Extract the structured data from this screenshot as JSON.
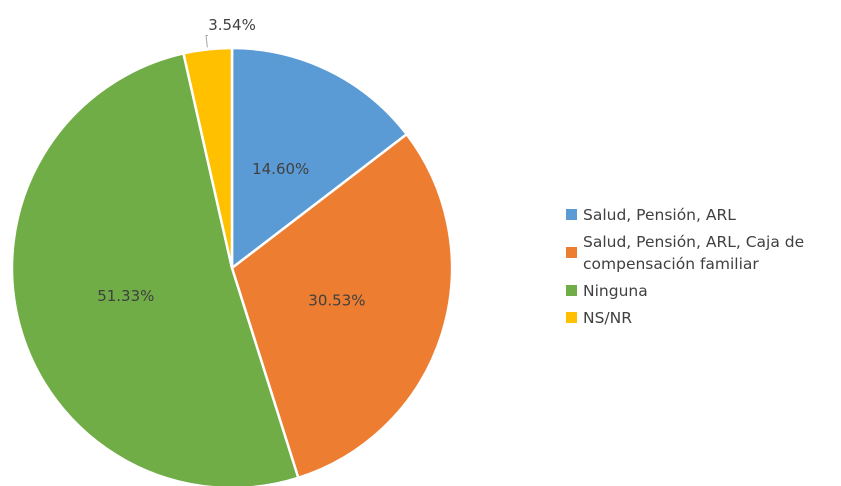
{
  "chart_data": {
    "type": "pie",
    "slices": [
      {
        "label": "Salud, Pensión, ARL",
        "value": 14.6,
        "display": "14.60%",
        "color": "#5B9BD5"
      },
      {
        "label": "Salud, Pensión, ARL, Caja de compensación familiar",
        "value": 30.53,
        "display": "30.53%",
        "color": "#ED7D31"
      },
      {
        "label": "Ninguna",
        "value": 51.33,
        "display": "51.33%",
        "color": "#70AD47"
      },
      {
        "label": "NS/NR",
        "value": 3.54,
        "display": "3.54%",
        "color": "#FFC000"
      }
    ],
    "start_angle_deg": 0,
    "direction": "clockwise",
    "legend_position": "right"
  }
}
